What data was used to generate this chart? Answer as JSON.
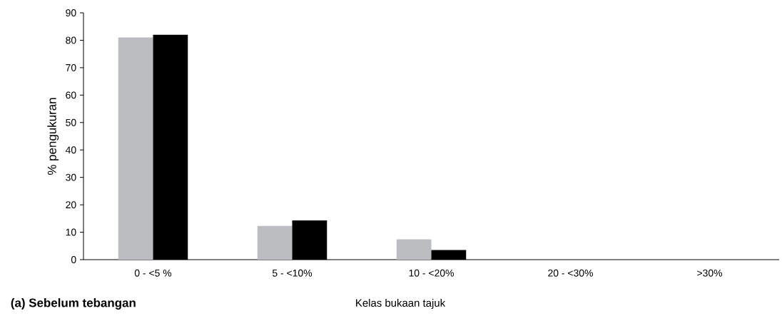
{
  "chart_data": {
    "type": "bar",
    "title": "**(a) Sebelum tebangan**",
    "xlabel": "Kelas bukaan tajuk",
    "ylabel": "% pengukuran",
    "categories": [
      "0 - <5 %",
      "5 - <10%",
      "10 - <20%",
      "20 - <30%",
      ">30%"
    ],
    "series": [
      {
        "color": "#bcbdc0",
        "values": [
          81,
          12.3,
          7.4,
          0,
          0
        ]
      },
      {
        "color": "#000000",
        "values": [
          82,
          14.3,
          3.5,
          0,
          0
        ]
      }
    ],
    "ylim": [
      0,
      90
    ],
    "yticks": [
      0,
      10,
      20,
      30,
      40,
      50,
      60,
      70,
      80,
      90
    ],
    "grid": false
  }
}
